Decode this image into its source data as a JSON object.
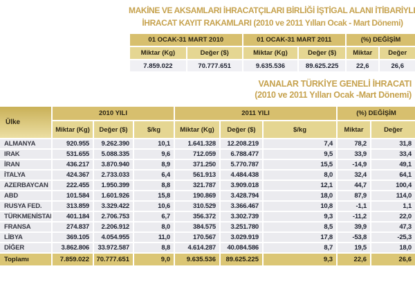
{
  "colors": {
    "gold_title": "#c6a24e",
    "header_dark": "#d7bf6e",
    "header_light": "#e5d692",
    "row_background": "#ebebef",
    "total_row_background": "#dbc675"
  },
  "titles": {
    "machinery_line1": "MAKİNE VE AKSAMLARI İHRACATÇILARI BİRLİĞİ İŞTİGAL ALANI İTİBARİYLE",
    "machinery_line2": "İHRACAT KAYIT RAKAMLARI (2010 ve 2011 Yılları Ocak - Mart Dönemi)",
    "valves_line1": "VANALAR TÜRKİYE GENELİ İHRACATI",
    "valves_line2": "(2010 ve 2011 Yılları Ocak -Mart Dönemi)"
  },
  "summary_table": {
    "col_groups": [
      "01 OCAK-31 MART 2010",
      "01 OCAK-31 MART 2011",
      "(%) DEĞİŞİM"
    ],
    "sub_headers": [
      "Miktar (Kg)",
      "Değer ($)",
      "Miktar (Kg)",
      "Değer ($)",
      "Miktar",
      "Değer"
    ],
    "row": [
      "7.859.022",
      "70.777.651",
      "9.635.536",
      "89.625.225",
      "22,6",
      "26,6"
    ]
  },
  "country_table": {
    "corner_header": "Ülke",
    "col_groups": [
      "2010 YILI",
      "2011 YILI",
      "(%) DEĞİŞİM"
    ],
    "sub_headers": [
      "Miktar (Kg)",
      "Değer ($)",
      "$/kg",
      "Miktar (Kg)",
      "Değer ($)",
      "$/kg",
      "Miktar",
      "Değer"
    ],
    "rows": [
      {
        "country": "ALMANYA",
        "values": [
          "920.955",
          "9.262.390",
          "10,1",
          "1.641.328",
          "12.208.219",
          "7,4",
          "78,2",
          "31,8"
        ]
      },
      {
        "country": "IRAK",
        "values": [
          "531.655",
          "5.088.335",
          "9,6",
          "712.059",
          "6.788.477",
          "9,5",
          "33,9",
          "33,4"
        ]
      },
      {
        "country": "İRAN",
        "values": [
          "436.217",
          "3.870.940",
          "8,9",
          "371.250",
          "5.770.787",
          "15,5",
          "-14,9",
          "49,1"
        ]
      },
      {
        "country": "İTALYA",
        "values": [
          "424.367",
          "2.733.033",
          "6,4",
          "561.913",
          "4.484.438",
          "8,0",
          "32,4",
          "64,1"
        ]
      },
      {
        "country": "AZERBAYCAN",
        "values": [
          "222.455",
          "1.950.399",
          "8,8",
          "321.787",
          "3.909.018",
          "12,1",
          "44,7",
          "100,4"
        ]
      },
      {
        "country": "ABD",
        "values": [
          "101.584",
          "1.601.926",
          "15,8",
          "190.869",
          "3.428.794",
          "18,0",
          "87,9",
          "114,0"
        ]
      },
      {
        "country": "RUSYA FED.",
        "values": [
          "313.859",
          "3.329.422",
          "10,6",
          "310.529",
          "3.366.467",
          "10,8",
          "-1,1",
          "1,1"
        ]
      },
      {
        "country": "TÜRKMENİSTAN",
        "values": [
          "401.184",
          "2.706.753",
          "6,7",
          "356.372",
          "3.302.739",
          "9,3",
          "-11,2",
          "22,0"
        ]
      },
      {
        "country": "FRANSA",
        "values": [
          "274.837",
          "2.206.912",
          "8,0",
          "384.575",
          "3.251.780",
          "8,5",
          "39,9",
          "47,3"
        ]
      },
      {
        "country": "LİBYA",
        "values": [
          "369.105",
          "4.054.955",
          "11,0",
          "170.567",
          "3.029.919",
          "17,8",
          "-53,8",
          "-25,3"
        ]
      },
      {
        "country": "DİĞER",
        "values": [
          "3.862.806",
          "33.972.587",
          "8,8",
          "4.614.287",
          "40.084.586",
          "8,7",
          "19,5",
          "18,0"
        ]
      }
    ],
    "total": {
      "label": "Toplamı",
      "values": [
        "7.859.022",
        "70.777.651",
        "9,0",
        "9.635.536",
        "89.625.225",
        "9,3",
        "22,6",
        "26,6"
      ]
    }
  }
}
